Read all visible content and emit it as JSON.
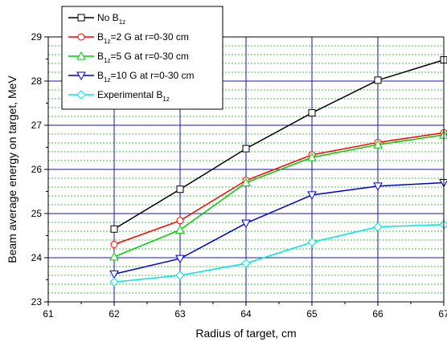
{
  "chart_data": {
    "type": "line",
    "xlabel": "Radius of target, cm",
    "ylabel": "Beam average energy on target, MeV",
    "xlim": [
      61,
      67
    ],
    "ylim": [
      23,
      29
    ],
    "x_ticks": [
      "61",
      "62",
      "63",
      "64",
      "65",
      "66",
      "67"
    ],
    "y_ticks": [
      "23",
      "24",
      "25",
      "26",
      "27",
      "28",
      "29"
    ],
    "grid": {
      "major": true,
      "minor_horizontal": true
    },
    "legend_position": "top-left",
    "x": [
      62,
      63,
      64,
      65,
      66,
      67
    ],
    "series": [
      {
        "name": "No B",
        "name_sub": "1z",
        "name_rest": "",
        "color": "#000000",
        "marker": "square",
        "values": [
          24.65,
          25.55,
          26.47,
          27.28,
          28.02,
          28.48
        ]
      },
      {
        "name": "B",
        "name_sub": "1z",
        "name_rest": "=2 G at r=0-30 cm",
        "color": "#ff0000",
        "marker": "circle",
        "values": [
          24.3,
          24.84,
          25.75,
          26.33,
          26.61,
          26.83
        ]
      },
      {
        "name": "B",
        "name_sub": "1z",
        "name_rest": "=5 G at r=0-30 cm",
        "color": "#00cc00",
        "marker": "triangle-up",
        "values": [
          24.02,
          24.63,
          25.7,
          26.27,
          26.56,
          26.78
        ]
      },
      {
        "name": "B",
        "name_sub": "1z",
        "name_rest": "=10 G at r=0-30 cm",
        "color": "#0000cc",
        "marker": "triangle-down",
        "values": [
          23.63,
          23.98,
          24.78,
          25.42,
          25.62,
          25.7
        ]
      },
      {
        "name": "Experimental B",
        "name_sub": "1z",
        "name_rest": "",
        "color": "#00e5e5",
        "marker": "diamond",
        "values": [
          23.45,
          23.6,
          23.87,
          24.35,
          24.7,
          24.75
        ]
      }
    ]
  }
}
